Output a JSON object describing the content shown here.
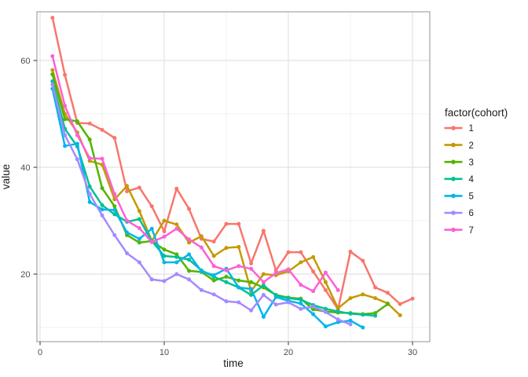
{
  "chart_data": {
    "type": "line",
    "title": "",
    "xlabel": "time",
    "ylabel": "value",
    "legend_title": "factor(cohort)",
    "legend_position": "right",
    "marker": "point",
    "grid": "on",
    "x_ticks": [
      0,
      10,
      20,
      30
    ],
    "x_minor_ticks": [
      5,
      15,
      25
    ],
    "y_ticks": [
      20,
      40,
      60
    ],
    "y_minor_ticks": [
      10,
      30,
      50
    ],
    "xlim": [
      -0.3,
      31.3
    ],
    "ylim": [
      7.4,
      69.2
    ],
    "theme": {
      "panel_background": "#ffffff",
      "panel_border": "#a3a3a3",
      "grid_major": "#e2e2e2",
      "grid_minor": "#f0f0f0",
      "tick_color": "#333333",
      "tick_label_color": "#4d4d4d",
      "axis_title_color": "#1a1a1a",
      "legend_text_color": "#1a1a1a"
    },
    "series": [
      {
        "label": "1",
        "cohort": 1,
        "color": "#F8766D",
        "x_start": 1,
        "values": [
          68,
          57.3,
          48.3,
          48.2,
          47,
          45.5,
          35.5,
          36.2,
          32.7,
          28,
          36,
          32.2,
          26.6,
          26.1,
          29.4,
          29.4,
          22,
          28.1,
          20.7,
          24.1,
          24.1,
          20.5,
          17,
          13.4,
          24.2,
          22.5,
          17.5,
          16.5,
          14.4,
          15.4
        ]
      },
      {
        "label": "2",
        "cohort": 2,
        "color": "#C49A00",
        "x_start": 1,
        "values": [
          58.2,
          50,
          46.5,
          41.2,
          40.5,
          34,
          36.5,
          31.8,
          26.2,
          30,
          29.3,
          25.9,
          27.1,
          23.4,
          24.9,
          25.1,
          16.8,
          20,
          19.8,
          20.5,
          22.2,
          23.2,
          18.5,
          13.6,
          15.5,
          16.2,
          15.5,
          14.5,
          12.3
        ]
      },
      {
        "label": "3",
        "cohort": 3,
        "color": "#53B400",
        "x_start": 1,
        "values": [
          57.4,
          49,
          48.6,
          45.2,
          36.1,
          32.7,
          27.3,
          25.9,
          26.2,
          24.6,
          23.7,
          20.6,
          20.4,
          18.8,
          19.5,
          18.8,
          18.5,
          17.5,
          16.1,
          15.6,
          15.4,
          13.4,
          13,
          12.8,
          12.7,
          12.5,
          12.7,
          14.4
        ]
      },
      {
        "label": "4",
        "cohort": 4,
        "color": "#00C094",
        "x_start": 1,
        "values": [
          56.1,
          47.2,
          43.9,
          36.4,
          32.9,
          31.2,
          29.8,
          30.3,
          26.2,
          23.4,
          23.2,
          22.7,
          20.7,
          19.5,
          18.5,
          17.5,
          16.1,
          17.9,
          16,
          15.5,
          15.2,
          14.2,
          13.5,
          13,
          12.6,
          12.4,
          12.2
        ]
      },
      {
        "label": "5",
        "cohort": 5,
        "color": "#00B6EB",
        "x_start": 1,
        "values": [
          54.7,
          44,
          44.4,
          33.5,
          32.1,
          32,
          27.8,
          26.6,
          28.5,
          22.2,
          22.2,
          23.7,
          20.5,
          19.8,
          21,
          17.5,
          17.2,
          12,
          15.7,
          15,
          14.5,
          12.5,
          10.2,
          11,
          11.3,
          10
        ]
      },
      {
        "label": "6",
        "cohort": 6,
        "color": "#A58AFF",
        "x_start": 1,
        "values": [
          55.5,
          46,
          41.5,
          35,
          31,
          27.3,
          23.9,
          22.2,
          19,
          18.7,
          20,
          19,
          17,
          16.2,
          14.9,
          14.7,
          13.2,
          16.1,
          14.3,
          14.7,
          13.5,
          13.9,
          12.9,
          11.5,
          10.6
        ]
      },
      {
        "label": "7",
        "cohort": 7,
        "color": "#FB61D7",
        "x_start": 1,
        "values": [
          60.8,
          51.5,
          46,
          41.7,
          41.6,
          35,
          30,
          28.6,
          26,
          27,
          28.5,
          26.5,
          25,
          21.5,
          20.7,
          21.5,
          21,
          18.5,
          20.2,
          20.9,
          18,
          16.8,
          20.3,
          17
        ]
      }
    ]
  }
}
